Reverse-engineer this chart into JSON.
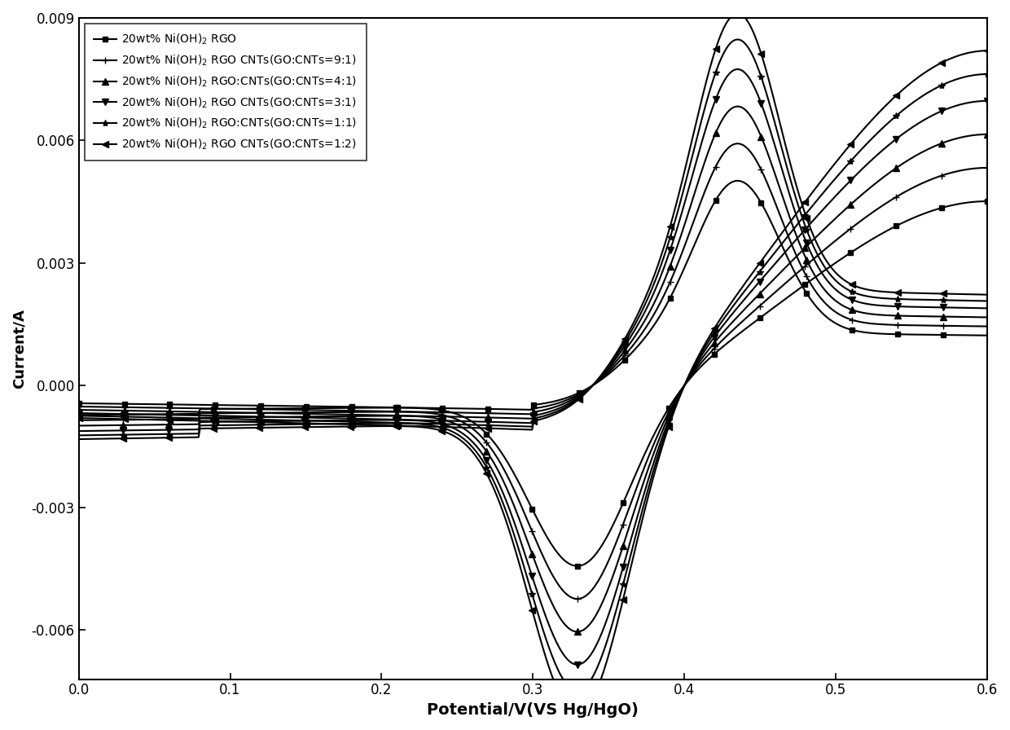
{
  "xlabel": "Potential/V(VS Hg/HgO)",
  "ylabel": "Current/A",
  "xlim": [
    0.0,
    0.6
  ],
  "ylim": [
    -0.0072,
    0.009
  ],
  "yticks": [
    -0.006,
    -0.003,
    0.0,
    0.003,
    0.006,
    0.009
  ],
  "xticks": [
    0.0,
    0.1,
    0.2,
    0.3,
    0.4,
    0.5,
    0.6
  ],
  "background_color": "#ffffff",
  "scales": [
    0.55,
    0.65,
    0.75,
    0.85,
    0.93,
    1.0
  ],
  "legend_entries": [
    {
      "label": "20wt% Ni(OH)$_2$ RGO",
      "marker": "s"
    },
    {
      "label": "20wt% Ni(OH)$_2$ RGO CNTs(GO:CNTs=9:1)",
      "marker": "+"
    },
    {
      "label": "20wt% Ni(OH)$_2$ RGO:CNTs(GO:CNTs=4:1)",
      "marker": "^"
    },
    {
      "label": "20wt% Ni(OH)$_2$ RGO CNTs(GO:CNTs=3:1)",
      "marker": "v"
    },
    {
      "label": "20wt% Ni(OH)$_2$ RGO:CNTs(GO:CNTs=1:1)",
      "marker": "*"
    },
    {
      "label": "20wt% Ni(OH)$_2$ RGO CNTs(GO:CNTs=1:2)",
      "marker": "<"
    }
  ]
}
